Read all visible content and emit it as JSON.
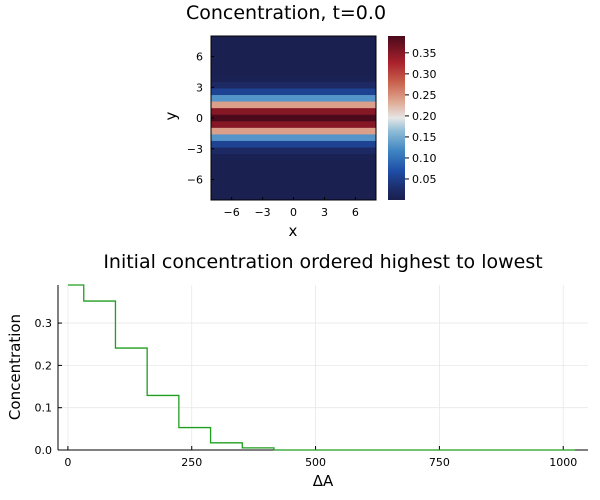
{
  "heatmap": {
    "title": "Concentration, t=0.0",
    "xlabel": "x",
    "ylabel": "y",
    "xticks": [
      -6,
      -3,
      0,
      3,
      6
    ],
    "yticks": [
      -6,
      -3,
      0,
      3,
      6
    ],
    "xlim": [
      -8,
      8
    ],
    "ylim": [
      -8,
      8
    ],
    "colorbar_ticks": [
      "0.05",
      "0.10",
      "0.15",
      "0.20",
      "0.25",
      "0.30",
      "0.35"
    ],
    "colorbar_range": [
      0.0,
      0.39
    ]
  },
  "chart_data": [
    {
      "type": "heatmap",
      "title": "Concentration, t=0.0",
      "xlabel": "x",
      "ylabel": "y",
      "xlim": [
        -8,
        8
      ],
      "ylim": [
        -8,
        8
      ],
      "rows_y": [
        -7.5,
        -6.5,
        -5.5,
        -4.5,
        -3.5,
        -2.5,
        -1.5,
        -0.5,
        0.5,
        1.5,
        2.5,
        3.5,
        4.5,
        5.5,
        6.5,
        7.5
      ],
      "row_values": [
        0.003,
        0.003,
        0.003,
        0.003,
        0.003,
        0.003,
        0.005,
        0.02,
        0.055,
        0.13,
        0.24,
        0.35,
        0.39,
        0.35,
        0.24,
        0.13,
        0.055,
        0.02,
        0.005,
        0.003,
        0.003,
        0.003,
        0.003,
        0.003,
        0.003
      ],
      "value_range": [
        0.0,
        0.39
      ]
    },
    {
      "type": "line",
      "title": "Initial concentration ordered highest to lowest",
      "xlabel": "ΔA",
      "ylabel": "Concentration",
      "xticks": [
        0,
        250,
        500,
        750,
        1000
      ],
      "yticks": [
        "0.0",
        "0.1",
        "0.2",
        "0.3"
      ],
      "xlim": [
        -20,
        1050
      ],
      "ylim": [
        0,
        0.39
      ],
      "grid": true,
      "series": [
        {
          "color": "#1f9e1f",
          "steps": [
            {
              "x0": 0,
              "x1": 32,
              "y": 0.39
            },
            {
              "x0": 32,
              "x1": 96,
              "y": 0.352
            },
            {
              "x0": 96,
              "x1": 160,
              "y": 0.241
            },
            {
              "x0": 160,
              "x1": 224,
              "y": 0.129
            },
            {
              "x0": 224,
              "x1": 288,
              "y": 0.053
            },
            {
              "x0": 288,
              "x1": 352,
              "y": 0.017
            },
            {
              "x0": 352,
              "x1": 416,
              "y": 0.005
            },
            {
              "x0": 416,
              "x1": 1024,
              "y": 0.0
            }
          ]
        }
      ]
    }
  ]
}
